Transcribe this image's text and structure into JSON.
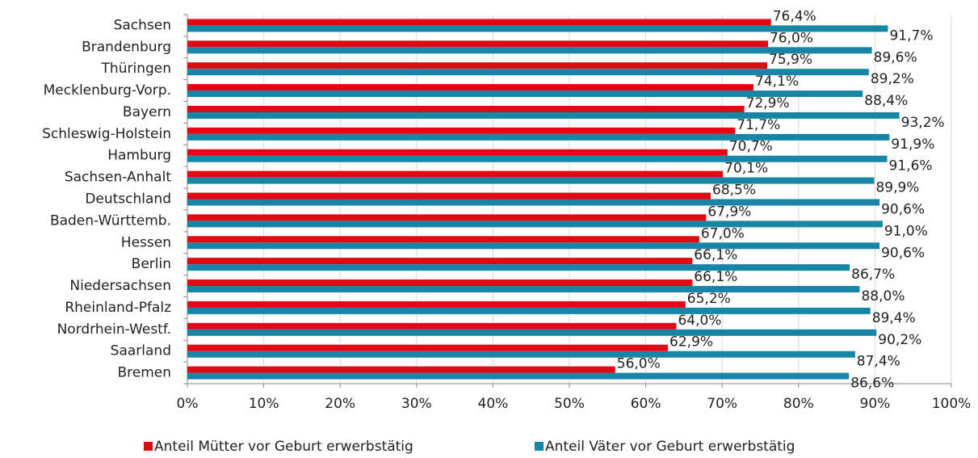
{
  "chart_data": {
    "type": "bar",
    "orientation": "horizontal",
    "categories": [
      "Sachsen",
      "Brandenburg",
      "Thüringen",
      "Mecklenburg-Vorp.",
      "Bayern",
      "Schleswig-Holstein",
      "Hamburg",
      "Sachsen-Anhalt",
      "Deutschland",
      "Baden-Württemb.",
      "Hessen",
      "Berlin",
      "Niedersachsen",
      "Rheinland-Pfalz",
      "Nordrhein-Westf.",
      "Saarland",
      "Bremen"
    ],
    "series": [
      {
        "name": "Anteil Mütter vor Geburt erwerbstätig",
        "color": "#e30613",
        "values": [
          76.4,
          76.0,
          75.9,
          74.1,
          72.9,
          71.7,
          70.7,
          70.1,
          68.5,
          67.9,
          67.0,
          66.1,
          66.1,
          65.2,
          64.0,
          62.9,
          56.0
        ],
        "value_labels": [
          "76,4%",
          "76,0%",
          "75,9%",
          "74,1%",
          "72,9%",
          "71,7%",
          "70,7%",
          "70,1%",
          "68,5%",
          "67,9%",
          "67,0%",
          "66,1%",
          "66,1%",
          "65,2%",
          "64,0%",
          "62,9%",
          "56,0%"
        ]
      },
      {
        "name": "Anteil Väter vor Geburt erwerbstätig",
        "color": "#1785a5",
        "values": [
          91.7,
          89.6,
          89.2,
          88.4,
          93.2,
          91.9,
          91.6,
          89.9,
          90.6,
          91.0,
          90.6,
          86.7,
          88.0,
          89.4,
          90.2,
          87.4,
          86.6
        ],
        "value_labels": [
          "91,7%",
          "89,6%",
          "89,2%",
          "88,4%",
          "93,2%",
          "91,9%",
          "91,6%",
          "89,9%",
          "90,6%",
          "91,0%",
          "90,6%",
          "86,7%",
          "88,0%",
          "89,4%",
          "90,2%",
          "87,4%",
          "86,6%"
        ]
      }
    ],
    "xlim": [
      0,
      100
    ],
    "xticks": [
      {
        "value": 0,
        "label": "0%"
      },
      {
        "value": 10,
        "label": "10%"
      },
      {
        "value": 20,
        "label": "20%"
      },
      {
        "value": 30,
        "label": "30%"
      },
      {
        "value": 40,
        "label": "40%"
      },
      {
        "value": 50,
        "label": "50%"
      },
      {
        "value": 60,
        "label": "60%"
      },
      {
        "value": 70,
        "label": "70%"
      },
      {
        "value": 80,
        "label": "80%"
      },
      {
        "value": 90,
        "label": "90%"
      },
      {
        "value": 100,
        "label": "100%"
      }
    ],
    "grid": true,
    "legend": "bottom"
  }
}
